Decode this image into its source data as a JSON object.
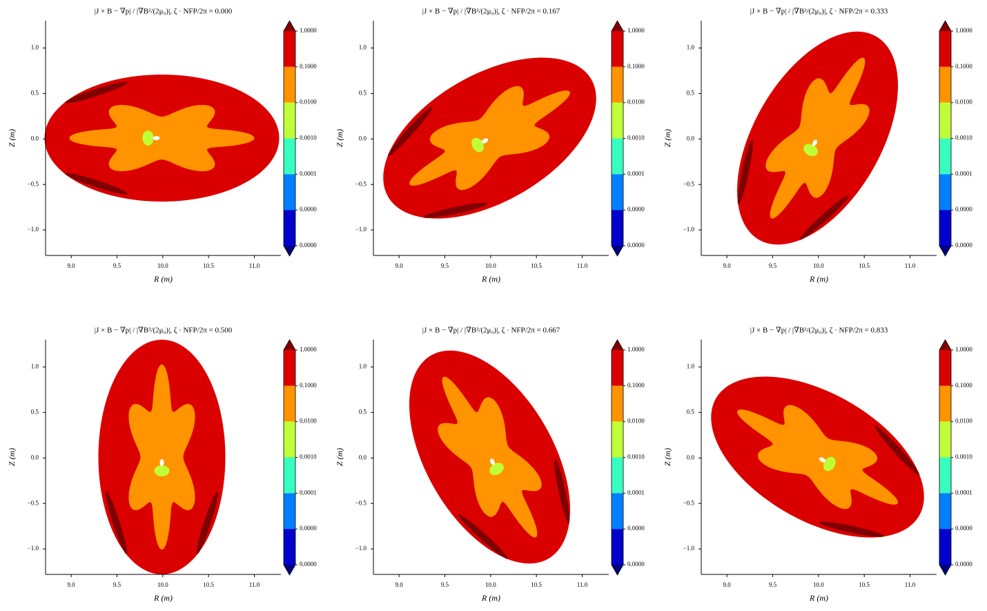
{
  "chart_data": [
    {
      "type": "contour",
      "title": "|J × B − ∇p| / |∇B²/(2μ₀)|, ζ · NFP/2π = 0.000",
      "xlabel": "R (m)",
      "ylabel": "Z (m)",
      "xlim": [
        8.72,
        11.29
      ],
      "ylim": [
        -1.28,
        1.3
      ],
      "xticks": [
        {
          "value": 9,
          "label": "9.0"
        },
        {
          "value": 9.5,
          "label": "9.5"
        },
        {
          "value": 10,
          "label": "10.0"
        },
        {
          "value": 10.5,
          "label": "10.5"
        },
        {
          "value": 11,
          "label": "11.0"
        }
      ],
      "yticks": [
        {
          "value": -1,
          "label": "−1.0"
        },
        {
          "value": -0.5,
          "label": "−0.5"
        },
        {
          "value": 0,
          "label": "0.0"
        },
        {
          "value": 0.5,
          "label": "0.5"
        },
        {
          "value": 1,
          "label": "1.0"
        }
      ],
      "levels": [
        {
          "value": 1,
          "label": "1.0000"
        },
        {
          "value": 0.1,
          "label": "0.1000"
        },
        {
          "value": 0.01,
          "label": "0.0100"
        },
        {
          "value": 0.001,
          "label": "0.0010"
        },
        {
          "value": 0.0001,
          "label": "0.0001"
        },
        {
          "value": 1e-05,
          "label": "0.0000"
        },
        {
          "value": 1e-06,
          "label": "0.0000"
        }
      ],
      "colors": [
        "#db0000",
        "#ff9300",
        "#bfff37",
        "#37ffc0",
        "#0080ff",
        "#0000cd"
      ],
      "extend_colors": [
        "#7f0000",
        "#00007f"
      ]
    },
    {
      "type": "contour",
      "title": "|J × B − ∇p| / |∇B²/(2μ₀)|, ζ · NFP/2π = 0.167",
      "xlabel": "R (m)",
      "ylabel": "Z (m)",
      "xlim": [
        8.72,
        11.29
      ],
      "ylim": [
        -1.28,
        1.3
      ],
      "xticks": [
        {
          "value": 9,
          "label": "9.0"
        },
        {
          "value": 9.5,
          "label": "9.5"
        },
        {
          "value": 10,
          "label": "10.0"
        },
        {
          "value": 10.5,
          "label": "10.5"
        },
        {
          "value": 11,
          "label": "11.0"
        }
      ],
      "yticks": [
        {
          "value": -1,
          "label": "−1.0"
        },
        {
          "value": -0.5,
          "label": "−0.5"
        },
        {
          "value": 0,
          "label": "0.0"
        },
        {
          "value": 0.5,
          "label": "0.5"
        },
        {
          "value": 1,
          "label": "1.0"
        }
      ],
      "levels": [
        {
          "value": 1,
          "label": "1.0000"
        },
        {
          "value": 0.1,
          "label": "0.1000"
        },
        {
          "value": 0.01,
          "label": "0.0100"
        },
        {
          "value": 0.001,
          "label": "0.0010"
        },
        {
          "value": 0.0001,
          "label": "0.0001"
        },
        {
          "value": 1e-05,
          "label": "0.0000"
        },
        {
          "value": 1e-06,
          "label": "0.0000"
        }
      ],
      "colors": [
        "#db0000",
        "#ff9300",
        "#bfff37",
        "#37ffc0",
        "#0080ff",
        "#0000cd"
      ],
      "extend_colors": [
        "#7f0000",
        "#00007f"
      ]
    },
    {
      "type": "contour",
      "title": "|J × B − ∇p| / |∇B²/(2μ₀)|, ζ · NFP/2π = 0.333",
      "xlabel": "R (m)",
      "ylabel": "Z (m)",
      "xlim": [
        8.72,
        11.29
      ],
      "ylim": [
        -1.28,
        1.3
      ],
      "xticks": [
        {
          "value": 9,
          "label": "9.0"
        },
        {
          "value": 9.5,
          "label": "9.5"
        },
        {
          "value": 10,
          "label": "10.0"
        },
        {
          "value": 10.5,
          "label": "10.5"
        },
        {
          "value": 11,
          "label": "11.0"
        }
      ],
      "yticks": [
        {
          "value": -1,
          "label": "−1.0"
        },
        {
          "value": -0.5,
          "label": "−0.5"
        },
        {
          "value": 0,
          "label": "0.0"
        },
        {
          "value": 0.5,
          "label": "0.5"
        },
        {
          "value": 1,
          "label": "1.0"
        }
      ],
      "levels": [
        {
          "value": 1,
          "label": "1.0000"
        },
        {
          "value": 0.1,
          "label": "0.1000"
        },
        {
          "value": 0.01,
          "label": "0.0100"
        },
        {
          "value": 0.001,
          "label": "0.0010"
        },
        {
          "value": 0.0001,
          "label": "0.0001"
        },
        {
          "value": 1e-05,
          "label": "0.0000"
        },
        {
          "value": 1e-06,
          "label": "0.0000"
        }
      ],
      "colors": [
        "#db0000",
        "#ff9300",
        "#bfff37",
        "#37ffc0",
        "#0080ff",
        "#0000cd"
      ],
      "extend_colors": [
        "#7f0000",
        "#00007f"
      ]
    },
    {
      "type": "contour",
      "title": "|J × B − ∇p| / |∇B²/(2μ₀)|, ζ · NFP/2π = 0.500",
      "xlabel": "R (m)",
      "ylabel": "Z (m)",
      "xlim": [
        8.72,
        11.29
      ],
      "ylim": [
        -1.28,
        1.3
      ],
      "xticks": [
        {
          "value": 9,
          "label": "9.0"
        },
        {
          "value": 9.5,
          "label": "9.5"
        },
        {
          "value": 10,
          "label": "10.0"
        },
        {
          "value": 10.5,
          "label": "10.5"
        },
        {
          "value": 11,
          "label": "11.0"
        }
      ],
      "yticks": [
        {
          "value": -1,
          "label": "−1.0"
        },
        {
          "value": -0.5,
          "label": "−0.5"
        },
        {
          "value": 0,
          "label": "0.0"
        },
        {
          "value": 0.5,
          "label": "0.5"
        },
        {
          "value": 1,
          "label": "1.0"
        }
      ],
      "levels": [
        {
          "value": 1,
          "label": "1.0000"
        },
        {
          "value": 0.1,
          "label": "0.1000"
        },
        {
          "value": 0.01,
          "label": "0.0100"
        },
        {
          "value": 0.001,
          "label": "0.0010"
        },
        {
          "value": 0.0001,
          "label": "0.0001"
        },
        {
          "value": 1e-05,
          "label": "0.0000"
        },
        {
          "value": 1e-06,
          "label": "0.0000"
        }
      ],
      "colors": [
        "#db0000",
        "#ff9300",
        "#bfff37",
        "#37ffc0",
        "#0080ff",
        "#0000cd"
      ],
      "extend_colors": [
        "#7f0000",
        "#00007f"
      ]
    },
    {
      "type": "contour",
      "title": "|J × B − ∇p| / |∇B²/(2μ₀)|, ζ · NFP/2π = 0.667",
      "xlabel": "R (m)",
      "ylabel": "Z (m)",
      "xlim": [
        8.72,
        11.29
      ],
      "ylim": [
        -1.28,
        1.3
      ],
      "xticks": [
        {
          "value": 9,
          "label": "9.0"
        },
        {
          "value": 9.5,
          "label": "9.5"
        },
        {
          "value": 10,
          "label": "10.0"
        },
        {
          "value": 10.5,
          "label": "10.5"
        },
        {
          "value": 11,
          "label": "11.0"
        }
      ],
      "yticks": [
        {
          "value": -1,
          "label": "−1.0"
        },
        {
          "value": -0.5,
          "label": "−0.5"
        },
        {
          "value": 0,
          "label": "0.0"
        },
        {
          "value": 0.5,
          "label": "0.5"
        },
        {
          "value": 1,
          "label": "1.0"
        }
      ],
      "levels": [
        {
          "value": 1,
          "label": "1.0000"
        },
        {
          "value": 0.1,
          "label": "0.1000"
        },
        {
          "value": 0.01,
          "label": "0.0100"
        },
        {
          "value": 0.001,
          "label": "0.0010"
        },
        {
          "value": 0.0001,
          "label": "0.0001"
        },
        {
          "value": 1e-05,
          "label": "0.0000"
        },
        {
          "value": 1e-06,
          "label": "0.0000"
        }
      ],
      "colors": [
        "#db0000",
        "#ff9300",
        "#bfff37",
        "#37ffc0",
        "#0080ff",
        "#0000cd"
      ],
      "extend_colors": [
        "#7f0000",
        "#00007f"
      ]
    },
    {
      "type": "contour",
      "title": "|J × B − ∇p| / |∇B²/(2μ₀)|, ζ · NFP/2π = 0.833",
      "xlabel": "R (m)",
      "ylabel": "Z (m)",
      "xlim": [
        8.72,
        11.29
      ],
      "ylim": [
        -1.28,
        1.3
      ],
      "xticks": [
        {
          "value": 9,
          "label": "9.0"
        },
        {
          "value": 9.5,
          "label": "9.5"
        },
        {
          "value": 10,
          "label": "10.0"
        },
        {
          "value": 10.5,
          "label": "10.5"
        },
        {
          "value": 11,
          "label": "11.0"
        }
      ],
      "yticks": [
        {
          "value": -1,
          "label": "−1.0"
        },
        {
          "value": -0.5,
          "label": "−0.5"
        },
        {
          "value": 0,
          "label": "0.0"
        },
        {
          "value": 0.5,
          "label": "0.5"
        },
        {
          "value": 1,
          "label": "1.0"
        }
      ],
      "levels": [
        {
          "value": 1,
          "label": "1.0000"
        },
        {
          "value": 0.1,
          "label": "0.1000"
        },
        {
          "value": 0.01,
          "label": "0.0100"
        },
        {
          "value": 0.001,
          "label": "0.0010"
        },
        {
          "value": 0.0001,
          "label": "0.0001"
        },
        {
          "value": 1e-05,
          "label": "0.0000"
        },
        {
          "value": 1e-06,
          "label": "0.0000"
        }
      ],
      "colors": [
        "#db0000",
        "#ff9300",
        "#bfff37",
        "#37ffc0",
        "#0080ff",
        "#0000cd"
      ],
      "extend_colors": [
        "#7f0000",
        "#00007f"
      ]
    }
  ]
}
